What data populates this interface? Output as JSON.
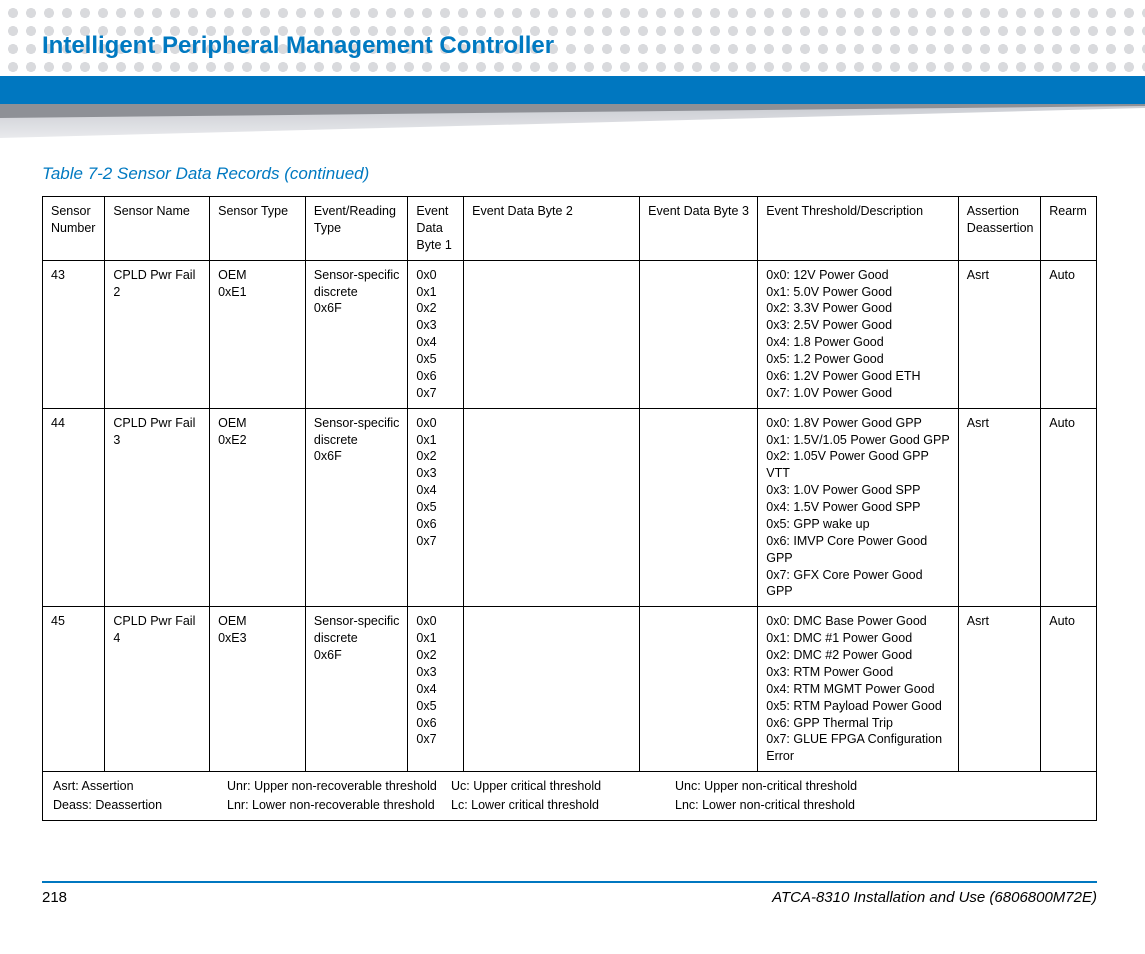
{
  "colors": {
    "accent": "#0079c1",
    "bar": "#0077c0",
    "dot": "#d9dadd",
    "wedge_light": "#c9cbd1",
    "wedge_dark": "#8e9096",
    "rule": "#0077c0",
    "text": "#000000",
    "background": "#ffffff"
  },
  "header": {
    "section_title": "Intelligent Peripheral Management Controller"
  },
  "table": {
    "caption": "Table 7-2 Sensor Data Records (continued)",
    "columns": [
      {
        "label": "Sensor Number",
        "width": 56
      },
      {
        "label": "Sensor Name",
        "width": 94
      },
      {
        "label": "Sensor Type",
        "width": 86
      },
      {
        "label": "Event/Reading Type",
        "width": 92
      },
      {
        "label": "Event Data Byte 1",
        "width": 50
      },
      {
        "label": "Event Data Byte 2",
        "width": 158
      },
      {
        "label": "Event Data Byte 3",
        "width": 106
      },
      {
        "label": "Event Threshold/Description",
        "width": 180
      },
      {
        "label": "Assertion Deassertion",
        "width": 74
      },
      {
        "label": "Rearm",
        "width": 50
      }
    ],
    "rows": [
      {
        "sensor_number": "43",
        "sensor_name": "CPLD Pwr Fail 2",
        "sensor_type": "OEM\n0xE1",
        "event_reading_type": "Sensor-specific discrete\n0x6F",
        "event_data_byte1": "0x0\n0x1\n0x2\n0x3\n0x4\n0x5\n0x6\n0x7",
        "event_data_byte2": "",
        "event_data_byte3": "",
        "threshold_description": "0x0: 12V Power Good\n0x1: 5.0V Power Good\n0x2: 3.3V Power Good\n0x3: 2.5V Power Good\n0x4: 1.8 Power Good\n0x5: 1.2 Power Good\n0x6: 1.2V Power Good ETH\n0x7: 1.0V Power Good",
        "assertion_deassertion": "Asrt",
        "rearm": "Auto"
      },
      {
        "sensor_number": "44",
        "sensor_name": "CPLD Pwr Fail 3",
        "sensor_type": "OEM\n0xE2",
        "event_reading_type": "Sensor-specific discrete\n0x6F",
        "event_data_byte1": "0x0\n0x1\n0x2\n0x3\n0x4\n0x5\n0x6\n0x7",
        "event_data_byte2": "",
        "event_data_byte3": "",
        "threshold_description": "0x0: 1.8V Power Good GPP\n0x1: 1.5V/1.05 Power Good GPP\n0x2: 1.05V Power Good GPP VTT\n0x3: 1.0V Power Good SPP\n0x4: 1.5V Power Good SPP\n0x5: GPP wake up\n0x6: IMVP Core Power Good GPP\n0x7: GFX Core Power Good GPP",
        "assertion_deassertion": "Asrt",
        "rearm": "Auto"
      },
      {
        "sensor_number": "45",
        "sensor_name": "CPLD Pwr Fail 4",
        "sensor_type": "OEM\n0xE3",
        "event_reading_type": "Sensor-specific discrete\n0x6F",
        "event_data_byte1": "0x0\n0x1\n0x2\n0x3\n0x4\n0x5\n0x6\n0x7",
        "event_data_byte2": "",
        "event_data_byte3": "",
        "threshold_description": "0x0: DMC Base Power Good\n0x1: DMC #1 Power Good\n0x2: DMC #2 Power Good\n0x3: RTM Power Good\n0x4: RTM MGMT Power Good\n0x5: RTM Payload Power Good\n0x6: GPP Thermal Trip\n0x7: GLUE FPGA Configuration Error",
        "assertion_deassertion": "Asrt",
        "rearm": "Auto"
      }
    ],
    "legend": {
      "col1": [
        "Asrt: Assertion",
        "Deass: Deassertion"
      ],
      "col2": [
        "Unr: Upper non-recoverable threshold",
        "Lnr: Lower non-recoverable threshold"
      ],
      "col3": [
        "Uc: Upper critical threshold",
        "Lc: Lower critical threshold"
      ],
      "col4": [
        "Unc: Upper non-critical threshold",
        "Lnc: Lower non-critical threshold"
      ]
    }
  },
  "footer": {
    "page_number": "218",
    "doc_title": "ATCA-8310 Installation and Use (6806800M72E)"
  }
}
